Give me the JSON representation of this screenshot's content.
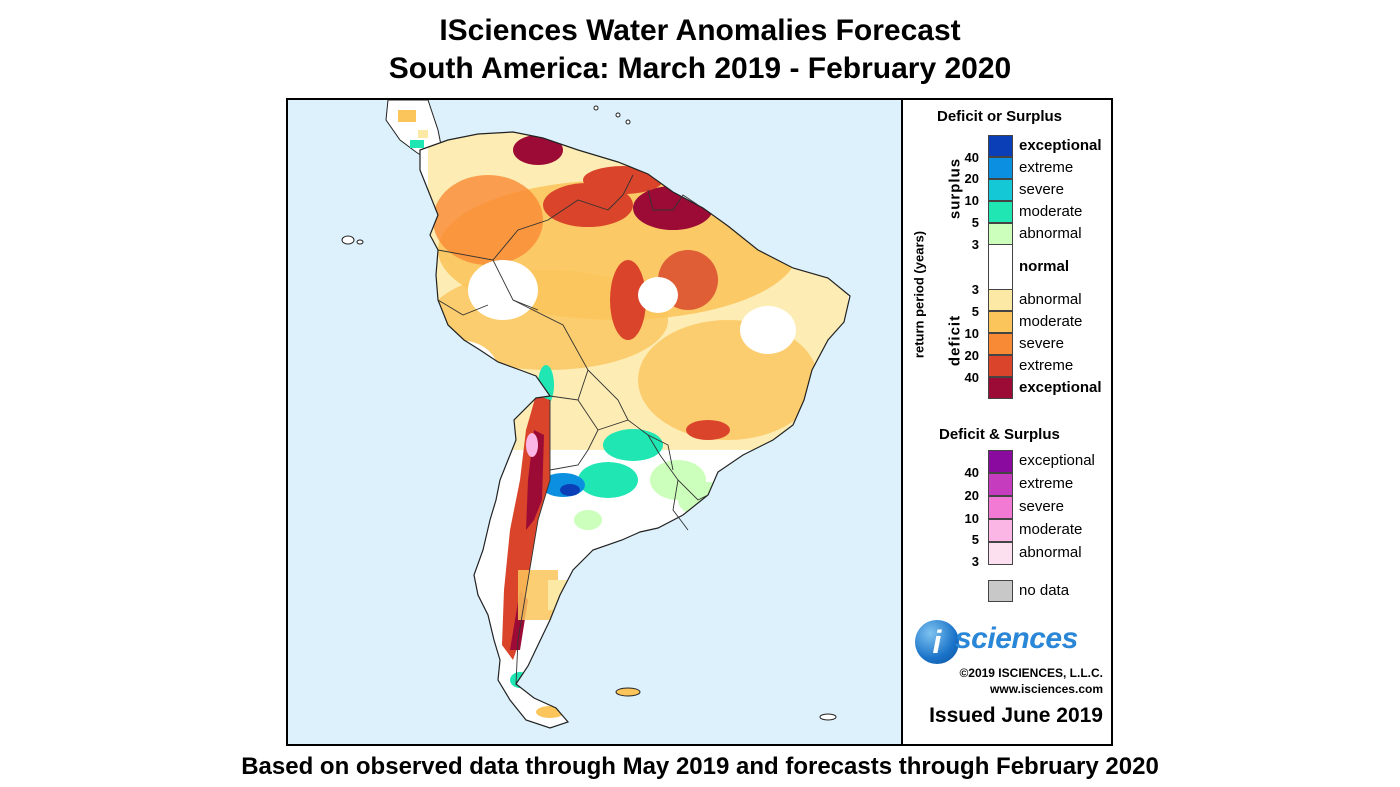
{
  "title": {
    "line1": "ISciences Water Anomalies Forecast",
    "line2": "South America: March 2019 - February 2020"
  },
  "footer": "Based on observed data through May 2019 and forecasts through February 2020",
  "legend": {
    "heading1": "Deficit or Surplus",
    "axis_label": "return period (years)",
    "surplus_label": "surplus",
    "deficit_label": "deficit",
    "surplus_numbers": [
      "40",
      "20",
      "10",
      "5",
      "3"
    ],
    "deficit_numbers": [
      "3",
      "5",
      "10",
      "20",
      "40"
    ],
    "surplus": [
      {
        "label": "exceptional",
        "color": "#0a3fb8"
      },
      {
        "label": "extreme",
        "color": "#0b8fe0"
      },
      {
        "label": "severe",
        "color": "#15c8d6"
      },
      {
        "label": "moderate",
        "color": "#1fe6b3"
      },
      {
        "label": "abnormal",
        "color": "#ccffbb"
      }
    ],
    "normal": {
      "label": "normal",
      "color": "#ffffff"
    },
    "deficit": [
      {
        "label": "abnormal",
        "color": "#fde9a6"
      },
      {
        "label": "moderate",
        "color": "#fbc55c"
      },
      {
        "label": "severe",
        "color": "#f98a35"
      },
      {
        "label": "extreme",
        "color": "#d9442b"
      },
      {
        "label": "exceptional",
        "color": "#9b0b36"
      }
    ],
    "heading2": "Deficit & Surplus",
    "both_numbers": [
      "40",
      "20",
      "10",
      "5",
      "3"
    ],
    "both": [
      {
        "label": "exceptional",
        "color": "#8a0aa0"
      },
      {
        "label": "extreme",
        "color": "#c63cbf"
      },
      {
        "label": "severe",
        "color": "#f27ad4"
      },
      {
        "label": "moderate",
        "color": "#fbb6e6"
      },
      {
        "label": "abnormal",
        "color": "#fde0ef"
      }
    ],
    "nodata": {
      "label": "no data",
      "color": "#c8c8c8"
    }
  },
  "branding": {
    "logo_letter": "i",
    "logo_text": "sciences",
    "copyright": "©2019 ISCIENCES, L.L.C.",
    "website": "www.isciences.com",
    "issued": "Issued June 2019"
  },
  "map": {
    "ocean_color": "#dcf1fb",
    "land_color": "#ffffff",
    "border_color": "#222222"
  }
}
